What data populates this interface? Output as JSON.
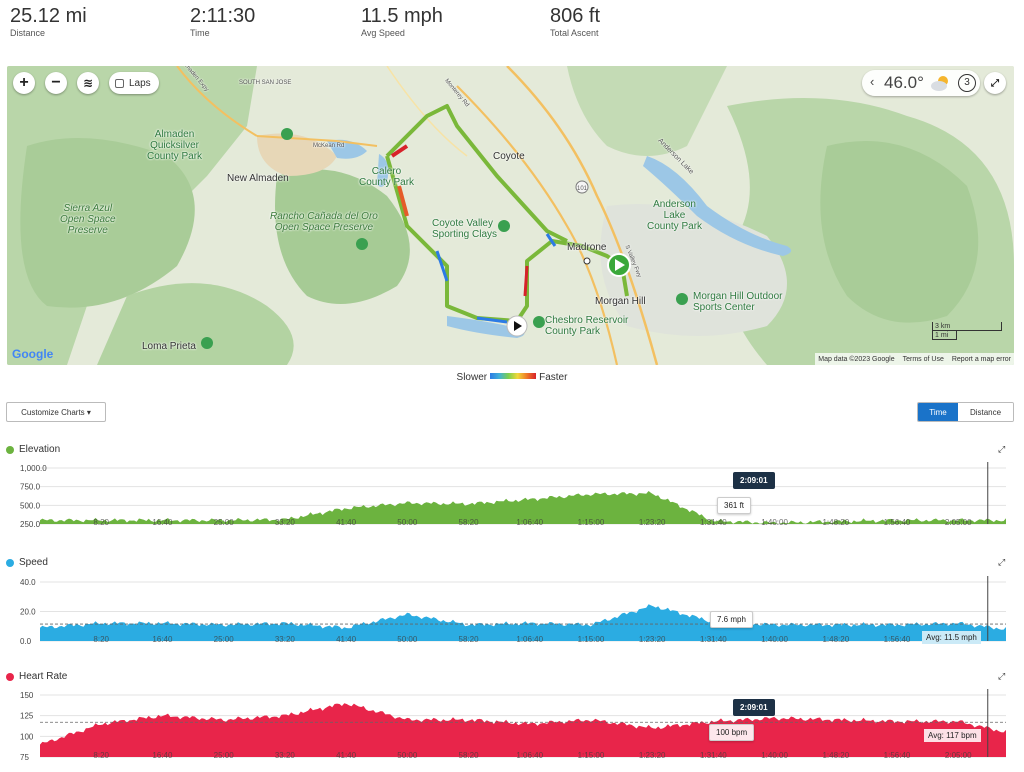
{
  "summary": {
    "distance": {
      "value": "25.12 mi",
      "label": "Distance"
    },
    "time": {
      "value": "2:11:30",
      "label": "Time"
    },
    "avg_speed": {
      "value": "11.5 mph",
      "label": "Avg Speed"
    },
    "total_ascent": {
      "value": "806 ft",
      "label": "Total Ascent"
    }
  },
  "map": {
    "zoom_in": "+",
    "zoom_out": "−",
    "laps_label": "Laps",
    "weather": {
      "temp": "46.0°",
      "wind_speed": "3",
      "chevron": "‹"
    },
    "places": {
      "south_san_jose": "SOUTH SAN JOSE",
      "almaden_quicksilver": "Almaden\nQuicksilver\nCounty Park",
      "new_almaden": "New Almaden",
      "sierra_azul": "Sierra Azul\nOpen Space\nPreserve",
      "calero": "Calero\nCounty Park",
      "rancho": "Rancho Cañada del Oro\nOpen Space Preserve",
      "coyote": "Coyote",
      "coyote_valley": "Coyote Valley\nSporting Clays",
      "anderson_lake_park": "Anderson\nLake\nCounty Park",
      "anderson_lake": "Anderson Lake",
      "madrone": "Madrone",
      "morgan_hill": "Morgan Hill",
      "morgan_hill_outdoor": "Morgan Hill Outdoor\nSports Center",
      "chesbro": "Chesbro Reservoir\nCounty Park",
      "loma_prieta": "Loma Prieta",
      "mckean": "McKean Rd",
      "hwy101": "101",
      "almaden_expy": "Almaden Expy",
      "monterey": "Monterey Rd",
      "valley_fwy": "S Valley Fwy"
    },
    "scale_km": "3 km",
    "scale_mi": "1 mi",
    "logo": "Google",
    "attribution": [
      "Map data ©2023 Google",
      "Terms of Use",
      "Report a map error"
    ]
  },
  "legend": {
    "slower": "Slower",
    "faster": "Faster"
  },
  "controls": {
    "customize": "Customize Charts ▾",
    "toggle_time": "Time",
    "toggle_distance": "Distance"
  },
  "colors": {
    "elevation": "#6cb33f",
    "speed": "#2bace2",
    "heart_rate": "#e8254a",
    "route_green": "#7ab83a",
    "tooltip_dark": "#1d3146",
    "active_toggle": "#1a73c9"
  },
  "time_ticks": [
    "8:20",
    "16:40",
    "25:00",
    "33:20",
    "41:40",
    "50:00",
    "58:20",
    "1:06:40",
    "1:15:00",
    "1:23:20",
    "1:31:40",
    "1:40:00",
    "1:48:20",
    "1:56:40",
    "2:05:00"
  ],
  "charts": {
    "elevation": {
      "title": "Elevation",
      "y_ticks": [
        "1,000.0",
        "750.0",
        "500.0",
        "250.0"
      ],
      "cursor_time": "2:09:01",
      "cursor_value": "361 ft"
    },
    "speed": {
      "title": "Speed",
      "y_ticks": [
        "40.0",
        "20.0",
        "0.0"
      ],
      "cursor_value": "7.6 mph",
      "avg_label": "Avg: 11.5 mph"
    },
    "heart_rate": {
      "title": "Heart Rate",
      "y_ticks": [
        "150",
        "125",
        "100",
        "75"
      ],
      "cursor_time": "2:09:01",
      "cursor_value": "100 bpm",
      "avg_label": "Avg: 117 bpm"
    }
  },
  "chart_data": [
    {
      "type": "area",
      "title": "Elevation",
      "xlabel": "Time",
      "ylabel": "",
      "ylim": [
        250,
        1000
      ],
      "x": [
        "0:00",
        "8:20",
        "16:40",
        "25:00",
        "33:20",
        "41:40",
        "50:00",
        "58:20",
        "1:06:40",
        "1:15:00",
        "1:23:20",
        "1:31:40",
        "1:40:00",
        "1:48:20",
        "1:56:40",
        "2:05:00",
        "2:11:30"
      ],
      "series": [
        {
          "values": [
            300,
            300,
            300,
            300,
            310,
            460,
            530,
            520,
            580,
            650,
            660,
            290,
            265,
            285,
            300,
            300,
            300
          ]
        }
      ],
      "cursor": {
        "x": "2:09:01",
        "y": 361
      },
      "grid": true
    },
    {
      "type": "area",
      "title": "Speed",
      "xlabel": "Time",
      "ylabel": "",
      "ylim": [
        0,
        40
      ],
      "x": [
        "0:00",
        "8:20",
        "16:40",
        "25:00",
        "33:20",
        "41:40",
        "50:00",
        "58:20",
        "1:06:40",
        "1:15:00",
        "1:23:20",
        "1:31:40",
        "1:40:00",
        "1:48:20",
        "1:56:40",
        "2:05:00",
        "2:11:30"
      ],
      "series": [
        {
          "values": [
            9,
            12,
            12,
            11,
            12,
            9,
            18,
            11,
            12,
            11,
            24,
            13,
            11,
            11,
            11,
            12,
            8
          ]
        }
      ],
      "average": 11.5,
      "cursor": {
        "x": "2:09:01",
        "y": 7.6
      },
      "grid": true
    },
    {
      "type": "area",
      "title": "Heart Rate",
      "xlabel": "Time",
      "ylabel": "",
      "ylim": [
        75,
        150
      ],
      "x": [
        "0:00",
        "8:20",
        "16:40",
        "25:00",
        "33:20",
        "41:40",
        "50:00",
        "58:20",
        "1:06:40",
        "1:15:00",
        "1:23:20",
        "1:31:40",
        "1:40:00",
        "1:48:20",
        "1:56:40",
        "2:05:00",
        "2:11:30"
      ],
      "series": [
        {
          "values": [
            90,
            115,
            125,
            120,
            125,
            140,
            120,
            120,
            115,
            120,
            110,
            118,
            122,
            120,
            118,
            118,
            105
          ]
        }
      ],
      "average": 117,
      "cursor": {
        "x": "2:09:01",
        "y": 100
      },
      "grid": true
    }
  ]
}
